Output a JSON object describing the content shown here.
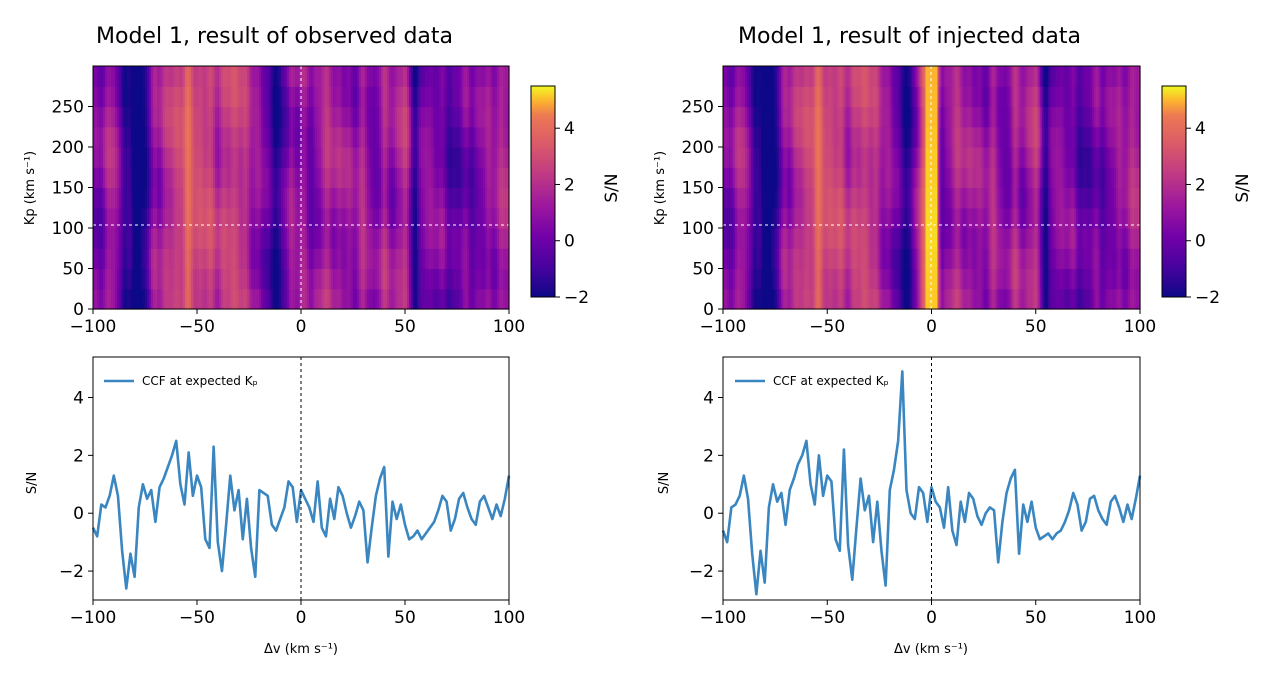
{
  "chart_data": [
    {
      "type": "heatmap",
      "title": "Model 1, result of observed data",
      "xlim": [
        -100,
        100
      ],
      "ylim": [
        0,
        300
      ],
      "x_ticks": [
        "−100",
        "−50",
        "0",
        "50",
        "100"
      ],
      "y_ticks": [
        "0",
        "50",
        "100",
        "150",
        "200",
        "250"
      ],
      "ylabel": "Kp (km s⁻¹)",
      "colorbar": {
        "label": "S/N",
        "range": [
          -2,
          5.5
        ],
        "ticks": [
          "−2",
          "0",
          "2",
          "4"
        ],
        "colormap": "plasma"
      },
      "crosshair": {
        "x": 0,
        "y": 102
      },
      "xpeak_profile": {
        "x": [
          -100,
          -95,
          -90,
          -85,
          -80,
          -75,
          -70,
          -65,
          -60,
          -55,
          -50,
          -45,
          -40,
          -35,
          -30,
          -25,
          -20,
          -15,
          -10,
          -5,
          0,
          5,
          10,
          15,
          20,
          25,
          30,
          35,
          40,
          45,
          50,
          55,
          60,
          65,
          70,
          75,
          80,
          85,
          90,
          95,
          100
        ],
        "values": [
          -0.6,
          0.2,
          0.8,
          -1.2,
          -2.5,
          -1.8,
          0.6,
          0.9,
          1.6,
          2.4,
          1.9,
          1.6,
          1.2,
          1.4,
          1.8,
          0.6,
          0.4,
          -1.3,
          -1.5,
          0.4,
          0.5,
          -0.4,
          0.7,
          0.9,
          0.4,
          0.3,
          0.8,
          -0.3,
          0.7,
          0.3,
          1.3,
          -1.6,
          0.2,
          0.1,
          -0.7,
          -0.9,
          -0.2,
          -0.5,
          0.5,
          0.4,
          1.2
        ]
      }
    },
    {
      "type": "heatmap",
      "title": "Model 1, result of injected data",
      "xlim": [
        -100,
        100
      ],
      "ylim": [
        0,
        300
      ],
      "x_ticks": [
        "−100",
        "−50",
        "0",
        "50",
        "100"
      ],
      "y_ticks": [
        "0",
        "50",
        "100",
        "150",
        "200",
        "250"
      ],
      "ylabel": "Kp (km s⁻¹)",
      "colorbar": {
        "label": "S/N",
        "range": [
          -2,
          5.5
        ],
        "ticks": [
          "−2",
          "0",
          "2",
          "4"
        ],
        "colormap": "plasma"
      },
      "crosshair": {
        "x": 0,
        "y": 102
      },
      "xpeak_profile": {
        "x": [
          -100,
          -95,
          -90,
          -85,
          -80,
          -75,
          -70,
          -65,
          -60,
          -55,
          -50,
          -45,
          -40,
          -35,
          -30,
          -25,
          -20,
          -15,
          -10,
          -5,
          0,
          5,
          10,
          15,
          20,
          25,
          30,
          35,
          40,
          45,
          50,
          55,
          60,
          65,
          70,
          75,
          80,
          85,
          90,
          95,
          100
        ],
        "values": [
          -0.6,
          0.2,
          0.8,
          -1.2,
          -2.7,
          -1.8,
          0.6,
          0.9,
          1.6,
          2.4,
          1.9,
          1.6,
          1.2,
          1.4,
          1.8,
          0.6,
          0.4,
          -1.3,
          -1.5,
          1.5,
          5.0,
          -0.4,
          0.7,
          0.9,
          0.4,
          0.3,
          0.8,
          -0.3,
          0.7,
          0.3,
          1.3,
          -1.6,
          0.2,
          0.1,
          -0.7,
          -0.9,
          -0.2,
          -0.5,
          0.5,
          0.4,
          1.2
        ]
      }
    },
    {
      "type": "line",
      "xlim": [
        -100,
        100
      ],
      "ylim": [
        -3,
        5.4
      ],
      "x_ticks": [
        "−100",
        "−50",
        "0",
        "50",
        "100"
      ],
      "y_ticks": [
        "−2",
        "0",
        "2",
        "4"
      ],
      "xlabel": "Δv (km s⁻¹)",
      "ylabel": "S/N",
      "legend": "top-left",
      "vline_x": 0,
      "series": [
        {
          "name": "CCF at expected Kₚ",
          "color": "#3a86c1",
          "x": [
            -100,
            -98,
            -96,
            -94,
            -92,
            -90,
            -88,
            -86,
            -84,
            -82,
            -80,
            -78,
            -76,
            -74,
            -72,
            -70,
            -68,
            -66,
            -64,
            -62,
            -60,
            -58,
            -56,
            -54,
            -52,
            -50,
            -48,
            -46,
            -44,
            -42,
            -40,
            -38,
            -36,
            -34,
            -32,
            -30,
            -28,
            -26,
            -24,
            -22,
            -20,
            -18,
            -16,
            -14,
            -12,
            -10,
            -8,
            -6,
            -4,
            -2,
            0,
            2,
            4,
            6,
            8,
            10,
            12,
            14,
            16,
            18,
            20,
            22,
            24,
            26,
            28,
            30,
            32,
            34,
            36,
            38,
            40,
            42,
            44,
            46,
            48,
            50,
            52,
            54,
            56,
            58,
            60,
            62,
            64,
            66,
            68,
            70,
            72,
            74,
            76,
            78,
            80,
            82,
            84,
            86,
            88,
            90,
            92,
            94,
            96,
            98,
            100
          ],
          "y": [
            -0.5,
            -0.8,
            0.3,
            0.2,
            0.6,
            1.3,
            0.6,
            -1.3,
            -2.6,
            -1.4,
            -2.2,
            0.2,
            1.0,
            0.5,
            0.8,
            -0.3,
            0.9,
            1.2,
            1.6,
            2.0,
            2.5,
            1.0,
            0.3,
            2.1,
            0.6,
            1.3,
            0.9,
            -0.9,
            -1.2,
            2.3,
            -1.0,
            -2.0,
            -0.4,
            1.3,
            0.1,
            0.8,
            -0.9,
            0.5,
            -1.2,
            -2.2,
            0.8,
            0.7,
            0.6,
            -0.4,
            -0.6,
            -0.2,
            0.2,
            1.1,
            0.9,
            -0.3,
            0.8,
            0.5,
            0.2,
            -0.3,
            1.1,
            -0.5,
            -0.8,
            0.5,
            -0.2,
            0.9,
            0.6,
            0.0,
            -0.5,
            -0.1,
            0.4,
            0.1,
            -1.7,
            -0.5,
            0.6,
            1.2,
            1.6,
            -1.5,
            0.4,
            -0.2,
            0.3,
            -0.4,
            -0.9,
            -0.8,
            -0.6,
            -0.9,
            -0.7,
            -0.5,
            -0.3,
            0.1,
            0.6,
            0.4,
            -0.6,
            -0.2,
            0.5,
            0.7,
            0.2,
            -0.2,
            -0.4,
            0.4,
            0.6,
            0.2,
            -0.2,
            0.3,
            -0.1,
            0.5,
            1.3
          ]
        }
      ]
    },
    {
      "type": "line",
      "xlim": [
        -100,
        100
      ],
      "ylim": [
        -3,
        5.4
      ],
      "x_ticks": [
        "−100",
        "−50",
        "0",
        "50",
        "100"
      ],
      "y_ticks": [
        "−2",
        "0",
        "2",
        "4"
      ],
      "xlabel": "Δv (km s⁻¹)",
      "ylabel": "S/N",
      "legend": "top-left",
      "vline_x": 0,
      "series": [
        {
          "name": "CCF at expected Kₚ",
          "color": "#3a86c1",
          "x": [
            -100,
            -98,
            -96,
            -94,
            -92,
            -90,
            -88,
            -86,
            -84,
            -82,
            -80,
            -78,
            -76,
            -74,
            -72,
            -70,
            -68,
            -66,
            -64,
            -62,
            -60,
            -58,
            -56,
            -54,
            -52,
            -50,
            -48,
            -46,
            -44,
            -42,
            -40,
            -38,
            -36,
            -34,
            -32,
            -30,
            -28,
            -26,
            -24,
            -22,
            -20,
            -18,
            -16,
            -14,
            -12,
            -10,
            -8,
            -6,
            -4,
            -2,
            0,
            2,
            4,
            6,
            8,
            10,
            12,
            14,
            16,
            18,
            20,
            22,
            24,
            26,
            28,
            30,
            32,
            34,
            36,
            38,
            40,
            42,
            44,
            46,
            48,
            50,
            52,
            54,
            56,
            58,
            60,
            62,
            64,
            66,
            68,
            70,
            72,
            74,
            76,
            78,
            80,
            82,
            84,
            86,
            88,
            90,
            92,
            94,
            96,
            98,
            100
          ],
          "y": [
            -0.6,
            -1.0,
            0.2,
            0.3,
            0.6,
            1.3,
            0.5,
            -1.4,
            -2.8,
            -1.3,
            -2.4,
            0.2,
            1.0,
            0.4,
            0.7,
            -0.4,
            0.8,
            1.2,
            1.7,
            2.0,
            2.5,
            1.0,
            0.3,
            2.0,
            0.6,
            1.3,
            1.1,
            -0.9,
            -1.3,
            2.2,
            -1.1,
            -2.3,
            -0.5,
            1.2,
            0.1,
            0.6,
            -1.0,
            0.4,
            -1.3,
            -2.5,
            0.8,
            1.5,
            2.5,
            4.9,
            0.8,
            0.0,
            -0.2,
            0.9,
            0.7,
            -0.3,
            0.9,
            0.4,
            0.2,
            -0.5,
            0.9,
            -0.6,
            -1.1,
            0.4,
            -0.3,
            0.7,
            0.5,
            -0.1,
            -0.4,
            0.0,
            0.2,
            0.1,
            -1.7,
            -0.3,
            0.7,
            1.2,
            1.5,
            -1.4,
            0.3,
            -0.3,
            0.4,
            -0.5,
            -0.9,
            -0.8,
            -0.7,
            -0.9,
            -0.7,
            -0.6,
            -0.3,
            0.1,
            0.7,
            0.3,
            -0.6,
            -0.3,
            0.5,
            0.6,
            0.1,
            -0.2,
            -0.4,
            0.4,
            0.6,
            0.2,
            -0.3,
            0.3,
            -0.2,
            0.5,
            1.3
          ]
        }
      ]
    }
  ]
}
